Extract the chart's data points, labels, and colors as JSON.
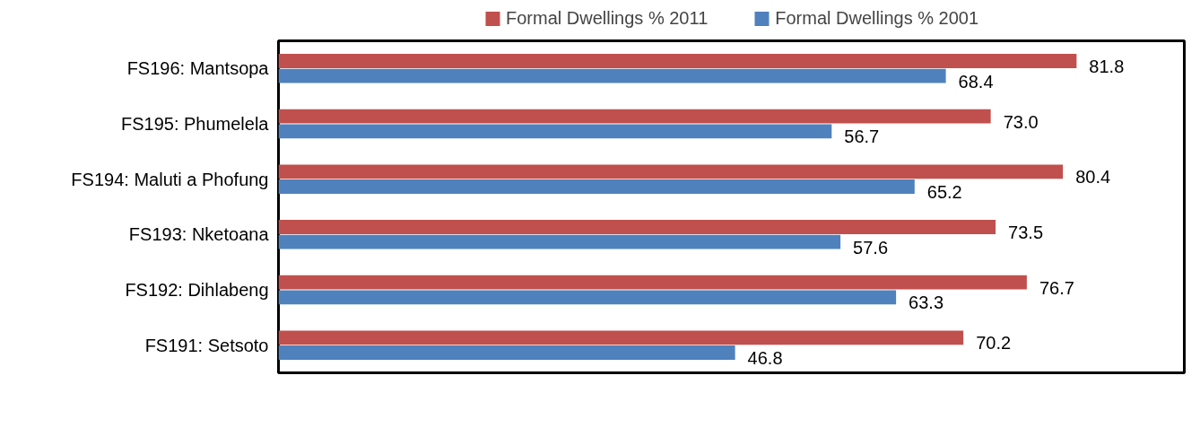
{
  "chart_data": {
    "type": "bar",
    "orientation": "horizontal",
    "categories": [
      "FS196: Mantsopa",
      "FS195: Phumelela",
      "FS194: Maluti a Phofung",
      "FS193: Nketoana",
      "FS192: Dihlabeng",
      "FS191: Setsoto"
    ],
    "series": [
      {
        "name": "Formal Dwellings % 2011",
        "color": "#c0504d",
        "values": [
          81.8,
          73.0,
          80.4,
          73.5,
          76.7,
          70.2
        ],
        "value_labels": [
          "81.8",
          "73.0",
          "80.4",
          "73.5",
          "76.7",
          "70.2"
        ]
      },
      {
        "name": "Formal Dwellings % 2001",
        "color": "#4f81bd",
        "values": [
          68.4,
          56.7,
          65.2,
          57.6,
          63.3,
          46.8
        ],
        "value_labels": [
          "68.4",
          "56.7",
          "65.2",
          "57.6",
          "63.3",
          "46.8"
        ]
      }
    ],
    "legend": "top",
    "grid": false,
    "tick_labels": "y"
  }
}
